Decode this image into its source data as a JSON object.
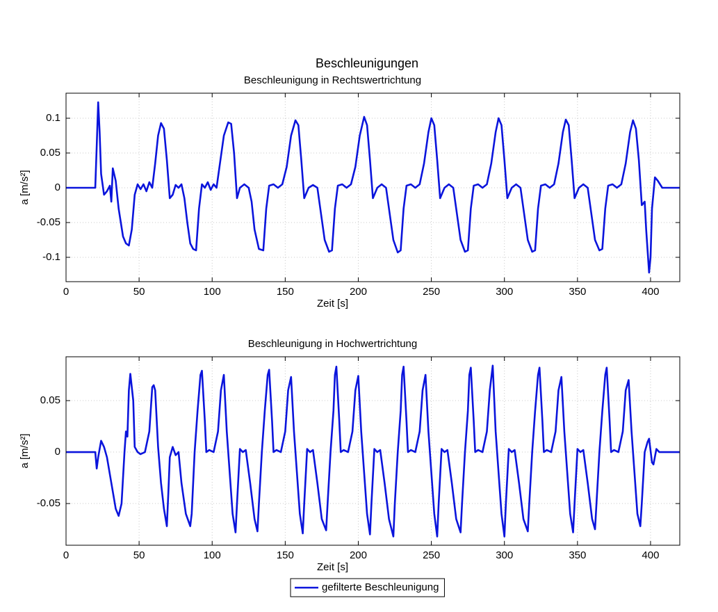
{
  "title": "Beschleunigungen",
  "legend": {
    "position": "bottom"
  },
  "chart_data": [
    {
      "type": "line",
      "title": "Beschleunigung in Rechtswertrichtung",
      "xlabel": "Zeit [s]",
      "ylabel": "a [m/s²]",
      "xlim": [
        0,
        420
      ],
      "ylim": [
        -0.135,
        0.136
      ],
      "xticks": [
        0,
        50,
        100,
        150,
        200,
        250,
        300,
        350,
        400
      ],
      "yticks": [
        -0.1,
        -0.05,
        0,
        0.05,
        0.1
      ],
      "grid": true,
      "x": [
        0,
        20,
        21,
        22,
        23,
        24,
        26,
        28,
        30,
        31,
        32,
        34,
        36,
        39,
        41,
        43,
        45,
        47,
        49,
        51,
        53,
        55,
        57,
        59,
        61,
        63,
        65,
        67,
        69,
        71,
        73,
        75,
        77,
        79,
        81,
        83,
        85,
        87,
        89,
        91,
        93,
        95,
        97,
        99,
        101,
        103,
        105,
        108,
        111,
        113,
        115,
        117,
        119,
        122,
        125,
        127,
        129,
        132,
        135,
        137,
        139,
        142,
        145,
        148,
        151,
        154,
        157,
        159,
        161,
        163,
        166,
        169,
        172,
        174,
        177,
        180,
        182,
        184,
        186,
        189,
        192,
        195,
        198,
        201,
        204,
        206,
        208,
        210,
        213,
        216,
        219,
        221,
        224,
        227,
        229,
        231,
        233,
        236,
        239,
        242,
        245,
        248,
        250,
        252,
        254,
        256,
        259,
        262,
        265,
        267,
        270,
        273,
        275,
        277,
        279,
        282,
        285,
        288,
        291,
        294,
        296,
        298,
        300,
        302,
        305,
        308,
        311,
        313,
        316,
        319,
        321,
        323,
        325,
        328,
        331,
        334,
        337,
        340,
        342,
        344,
        346,
        348,
        351,
        354,
        357,
        359,
        362,
        365,
        367,
        369,
        371,
        374,
        377,
        380,
        383,
        386,
        388,
        390,
        392,
        394,
        396,
        397,
        399,
        400,
        401,
        403,
        405,
        408,
        420
      ],
      "series": [
        {
          "color": "#0a14dc",
          "values": [
            0,
            0,
            0.06,
            0.123,
            0.08,
            0.02,
            -0.01,
            -0.005,
            0.003,
            -0.02,
            0.028,
            0.01,
            -0.03,
            -0.07,
            -0.08,
            -0.083,
            -0.06,
            -0.01,
            0.005,
            -0.002,
            0.005,
            -0.005,
            0.008,
            0,
            0.035,
            0.075,
            0.093,
            0.085,
            0.04,
            -0.015,
            -0.01,
            0.004,
            0,
            0.005,
            -0.015,
            -0.05,
            -0.08,
            -0.088,
            -0.09,
            -0.03,
            0.005,
            0,
            0.008,
            -0.003,
            0.005,
            0,
            0.03,
            0.075,
            0.094,
            0.092,
            0.05,
            -0.015,
            0,
            0.005,
            0,
            -0.02,
            -0.06,
            -0.088,
            -0.09,
            -0.03,
            0.003,
            0.005,
            0,
            0.005,
            0.03,
            0.075,
            0.097,
            0.09,
            0.04,
            -0.015,
            0,
            0.004,
            0,
            -0.03,
            -0.075,
            -0.092,
            -0.09,
            -0.03,
            0.003,
            0.005,
            0,
            0.005,
            0.03,
            0.075,
            0.102,
            0.09,
            0.04,
            -0.015,
            0,
            0.005,
            0,
            -0.03,
            -0.075,
            -0.093,
            -0.09,
            -0.03,
            0.003,
            0.005,
            0,
            0.005,
            0.035,
            0.08,
            0.1,
            0.09,
            0.04,
            -0.015,
            0,
            0.005,
            0,
            -0.03,
            -0.075,
            -0.092,
            -0.09,
            -0.03,
            0.003,
            0.005,
            0,
            0.005,
            0.035,
            0.08,
            0.1,
            0.09,
            0.04,
            -0.015,
            0,
            0.005,
            0,
            -0.03,
            -0.075,
            -0.092,
            -0.09,
            -0.03,
            0.003,
            0.005,
            0,
            0.005,
            0.035,
            0.08,
            0.098,
            0.09,
            0.04,
            -0.015,
            0,
            0.005,
            0,
            -0.03,
            -0.075,
            -0.09,
            -0.088,
            -0.03,
            0.003,
            0.005,
            0,
            0.005,
            0.035,
            0.08,
            0.097,
            0.085,
            0.04,
            -0.025,
            -0.02,
            -0.06,
            -0.122,
            -0.1,
            -0.03,
            0.015,
            0.01,
            0,
            0
          ]
        }
      ]
    },
    {
      "type": "line",
      "title": "Beschleunigung in Hochwertrichtung",
      "xlabel": "Zeit [s]",
      "ylabel": "a [m/s²]",
      "xlim": [
        0,
        420
      ],
      "ylim": [
        -0.0905,
        0.0926
      ],
      "xticks": [
        0,
        50,
        100,
        150,
        200,
        250,
        300,
        350,
        400
      ],
      "yticks": [
        -0.05,
        0,
        0.05
      ],
      "grid": true,
      "x": [
        0,
        20,
        21,
        22,
        24,
        26,
        28,
        31,
        34,
        36,
        38,
        40,
        41,
        42,
        43,
        44,
        46,
        47,
        49,
        51,
        54,
        57,
        59,
        60,
        61,
        63,
        65,
        67,
        69,
        70,
        71,
        73,
        75,
        77,
        79,
        82,
        85,
        86,
        88,
        90,
        92,
        93,
        95,
        96,
        98,
        101,
        104,
        106,
        108,
        110,
        112,
        114,
        116,
        117,
        119,
        121,
        123,
        126,
        129,
        131,
        132,
        134,
        136,
        138,
        139,
        141,
        142,
        144,
        147,
        150,
        152,
        154,
        156,
        158,
        160,
        162,
        163,
        165,
        167,
        169,
        172,
        175,
        178,
        179,
        181,
        183,
        184,
        185,
        187,
        188,
        190,
        193,
        196,
        198,
        200,
        202,
        204,
        206,
        208,
        209,
        211,
        213,
        215,
        218,
        221,
        224,
        225,
        227,
        229,
        230,
        231,
        233,
        234,
        236,
        239,
        242,
        244,
        246,
        248,
        250,
        252,
        254,
        255,
        257,
        259,
        261,
        264,
        267,
        270,
        271,
        273,
        275,
        276,
        277,
        279,
        280,
        282,
        285,
        288,
        290,
        292,
        294,
        296,
        298,
        300,
        301,
        303,
        305,
        307,
        310,
        313,
        316,
        317,
        319,
        321,
        323,
        324,
        326,
        327,
        329,
        332,
        335,
        337,
        339,
        341,
        343,
        345,
        347,
        348,
        350,
        352,
        354,
        357,
        360,
        362,
        363,
        365,
        367,
        369,
        370,
        372,
        373,
        375,
        378,
        381,
        383,
        385,
        387,
        389,
        391,
        393,
        394,
        396,
        398,
        399,
        401,
        402,
        404,
        406,
        420
      ],
      "series": [
        {
          "name": "gefilterte Beschleunigung",
          "color": "#0a14dc",
          "values": [
            0,
            0,
            -0.016,
            -0.005,
            0.011,
            0.005,
            -0.005,
            -0.03,
            -0.055,
            -0.062,
            -0.05,
            0,
            0.02,
            0.015,
            0.06,
            0.076,
            0.05,
            0.005,
            0,
            -0.002,
            0,
            0.02,
            0.063,
            0.065,
            0.06,
            0.005,
            -0.03,
            -0.055,
            -0.072,
            -0.04,
            -0.005,
            0.005,
            -0.003,
            0,
            -0.03,
            -0.06,
            -0.072,
            -0.06,
            0,
            0.04,
            0.075,
            0.079,
            0.03,
            0,
            0.002,
            0,
            0.02,
            0.06,
            0.075,
            0.02,
            -0.02,
            -0.06,
            -0.078,
            -0.05,
            0.003,
            0,
            0.002,
            -0.03,
            -0.065,
            -0.077,
            -0.05,
            0,
            0.04,
            0.075,
            0.08,
            0.03,
            0,
            0.002,
            0,
            0.02,
            0.06,
            0.073,
            0.02,
            -0.02,
            -0.06,
            -0.079,
            -0.05,
            0.003,
            0,
            0.002,
            -0.03,
            -0.065,
            -0.076,
            -0.05,
            0,
            0.04,
            0.075,
            0.083,
            0.03,
            0,
            0.002,
            0,
            0.02,
            0.06,
            0.074,
            0.02,
            -0.02,
            -0.06,
            -0.08,
            -0.05,
            0.003,
            0,
            0.002,
            -0.03,
            -0.065,
            -0.082,
            -0.05,
            0,
            0.04,
            0.075,
            0.083,
            0.03,
            0,
            0.002,
            0,
            0.02,
            0.06,
            0.075,
            0.02,
            -0.02,
            -0.06,
            -0.082,
            -0.05,
            0.003,
            0,
            0.002,
            -0.03,
            -0.065,
            -0.078,
            -0.05,
            0,
            0.04,
            0.075,
            0.082,
            0.03,
            0,
            0.002,
            0,
            0.02,
            0.06,
            0.084,
            0.02,
            -0.02,
            -0.06,
            -0.082,
            -0.05,
            0.003,
            0,
            0.002,
            -0.03,
            -0.065,
            -0.077,
            -0.05,
            0,
            0.04,
            0.075,
            0.082,
            0.03,
            0,
            0.002,
            0,
            0.02,
            0.06,
            0.073,
            0.02,
            -0.02,
            -0.06,
            -0.078,
            -0.05,
            0.003,
            0,
            0.002,
            -0.03,
            -0.065,
            -0.075,
            -0.05,
            0,
            0.04,
            0.075,
            0.082,
            0.03,
            0,
            0.002,
            0,
            0.02,
            0.06,
            0.07,
            0.02,
            -0.02,
            -0.06,
            -0.072,
            -0.05,
            0,
            0.01,
            0.013,
            -0.01,
            -0.012,
            0.003,
            0,
            0
          ]
        }
      ]
    }
  ]
}
